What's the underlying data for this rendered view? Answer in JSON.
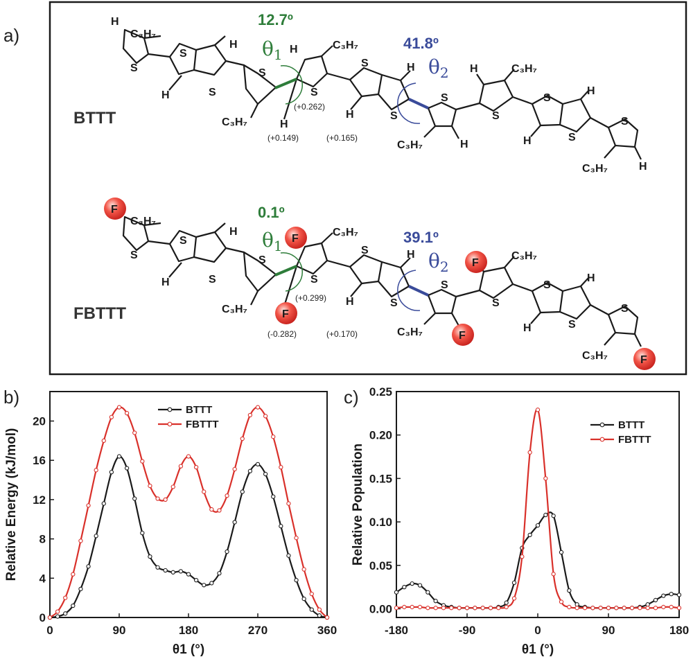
{
  "colors": {
    "bttt": "#1a1a1a",
    "fbttt": "#d9302a",
    "green": "#2e7d3a",
    "blue": "#3a4b9a",
    "fluorine": "#e23030"
  },
  "panel_a": {
    "letter": "a)",
    "bttt": {
      "name": "BTTT",
      "theta1_angle": "12.7º",
      "theta2_angle": "41.8º",
      "charges": [
        "(+0.262)",
        "(+0.149)",
        "(+0.165)"
      ]
    },
    "fbttt": {
      "name": "FBTTT",
      "theta1_angle": "0.1º",
      "theta2_angle": "39.1º",
      "charges": [
        "(+0.299)",
        "(-0.282)",
        "(+0.170)"
      ]
    },
    "theta1": "θ1",
    "theta2": "θ2",
    "atoms": {
      "S": "S",
      "H": "H",
      "F": "F",
      "propyl_main": "C",
      "propyl_h": "3",
      "propyl_sub_h": "H",
      "propyl_7": "7"
    }
  },
  "chart_data": [
    {
      "panel": "b)",
      "type": "line",
      "xlabel": "θ1 (°)",
      "ylabel": "Relative Energy (kJ/mol)",
      "xlim": [
        0,
        360
      ],
      "ylim": [
        0,
        23
      ],
      "xticks": [
        0,
        90,
        180,
        270,
        360
      ],
      "yticks": [
        0,
        4,
        8,
        12,
        16,
        20
      ],
      "legend_position": "top-center",
      "series": [
        {
          "name": "BTTT",
          "x": [
            0,
            10,
            20,
            30,
            40,
            50,
            60,
            70,
            80,
            90,
            100,
            110,
            120,
            130,
            140,
            150,
            160,
            170,
            180,
            190,
            200,
            210,
            220,
            230,
            240,
            250,
            260,
            270,
            280,
            290,
            300,
            310,
            320,
            330,
            340,
            350,
            360
          ],
          "y": [
            0.0,
            0.1,
            0.4,
            1.2,
            2.9,
            5.2,
            8.3,
            11.6,
            14.8,
            16.4,
            15.2,
            12.1,
            8.6,
            6.2,
            5.1,
            4.8,
            4.6,
            4.7,
            4.4,
            3.8,
            3.3,
            3.5,
            4.5,
            6.7,
            9.7,
            12.8,
            14.9,
            15.6,
            14.6,
            12.3,
            9.3,
            6.3,
            3.8,
            1.9,
            0.8,
            0.2,
            0.0
          ]
        },
        {
          "name": "FBTTT",
          "x": [
            0,
            10,
            20,
            30,
            40,
            50,
            60,
            70,
            80,
            90,
            100,
            110,
            120,
            130,
            140,
            150,
            160,
            170,
            180,
            190,
            200,
            210,
            220,
            230,
            240,
            250,
            260,
            270,
            280,
            290,
            300,
            310,
            320,
            330,
            340,
            350,
            360
          ],
          "y": [
            0.0,
            0.6,
            2.0,
            4.4,
            7.8,
            11.4,
            15.0,
            18.0,
            20.4,
            21.4,
            20.8,
            18.8,
            15.9,
            13.4,
            12.1,
            12.0,
            13.3,
            15.4,
            16.4,
            15.3,
            12.8,
            11.0,
            10.9,
            12.4,
            15.1,
            18.2,
            20.6,
            21.4,
            20.5,
            18.4,
            15.3,
            11.6,
            8.1,
            4.9,
            2.4,
            0.8,
            0.0
          ]
        }
      ]
    },
    {
      "panel": "c)",
      "type": "line",
      "xlabel": "θ1 (°)",
      "ylabel": "Relative Population",
      "xlim": [
        -180,
        180
      ],
      "ylim": [
        -0.01,
        0.25
      ],
      "xticks": [
        -180,
        -90,
        0,
        90,
        180
      ],
      "yticks": [
        0.0,
        0.05,
        0.1,
        0.15,
        0.2,
        0.25
      ],
      "legend_position": "top-right",
      "series": [
        {
          "name": "BTTT",
          "x": [
            -180,
            -170,
            -160,
            -150,
            -140,
            -130,
            -120,
            -110,
            -100,
            -90,
            -80,
            -70,
            -60,
            -50,
            -40,
            -30,
            -20,
            -10,
            0,
            10,
            20,
            30,
            40,
            50,
            60,
            70,
            80,
            90,
            100,
            110,
            120,
            130,
            140,
            150,
            160,
            170,
            180
          ],
          "y": [
            0.019,
            0.025,
            0.029,
            0.027,
            0.019,
            0.009,
            0.004,
            0.002,
            0.001,
            0.001,
            0.001,
            0.001,
            0.001,
            0.002,
            0.007,
            0.03,
            0.07,
            0.085,
            0.096,
            0.108,
            0.107,
            0.065,
            0.021,
            0.005,
            0.002,
            0.001,
            0.001,
            0.001,
            0.001,
            0.001,
            0.001,
            0.002,
            0.005,
            0.01,
            0.015,
            0.017,
            0.016
          ]
        },
        {
          "name": "FBTTT",
          "x": [
            -180,
            -170,
            -160,
            -150,
            -140,
            -130,
            -120,
            -110,
            -100,
            -90,
            -80,
            -70,
            -60,
            -50,
            -40,
            -30,
            -20,
            -10,
            0,
            10,
            20,
            30,
            40,
            50,
            60,
            70,
            80,
            90,
            100,
            110,
            120,
            130,
            140,
            150,
            160,
            170,
            180
          ],
          "y": [
            0.001,
            0.002,
            0.002,
            0.002,
            0.001,
            0.001,
            0.001,
            0.001,
            0.001,
            0.001,
            0.001,
            0.001,
            0.001,
            0.001,
            0.002,
            0.012,
            0.06,
            0.18,
            0.229,
            0.15,
            0.04,
            0.008,
            0.002,
            0.001,
            0.001,
            0.001,
            0.001,
            0.001,
            0.001,
            0.001,
            0.001,
            0.001,
            0.001,
            0.001,
            0.002,
            0.002,
            0.001
          ]
        }
      ]
    }
  ]
}
